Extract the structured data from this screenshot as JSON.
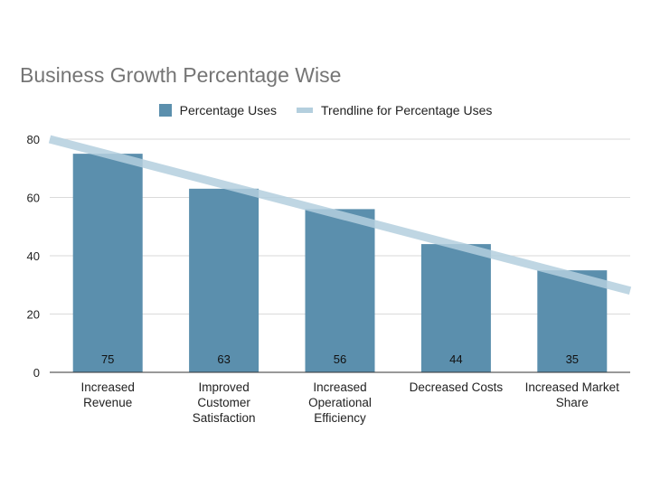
{
  "chart_data": {
    "type": "bar",
    "title": "Business Growth Percentage Wise",
    "xlabel": "",
    "ylabel": "",
    "categories": [
      [
        "Increased",
        "Revenue"
      ],
      [
        "Improved",
        "Customer",
        "Satisfaction"
      ],
      [
        "Increased",
        "Operational",
        "Efficiency"
      ],
      [
        "Decreased Costs"
      ],
      [
        "Increased Market",
        "Share"
      ]
    ],
    "series": [
      {
        "name": "Percentage Uses",
        "values": [
          75,
          63,
          56,
          44,
          35
        ],
        "color": "#5b8fad"
      }
    ],
    "trendline": {
      "name": "Trendline for Percentage Uses",
      "start": 80,
      "end": 28,
      "color": "#b4cfde"
    },
    "y_ticks": [
      "0",
      "20",
      "40",
      "60",
      "80"
    ],
    "ylim": [
      0,
      80
    ],
    "grid": true,
    "legend_position": "top-center",
    "data_labels": true
  }
}
